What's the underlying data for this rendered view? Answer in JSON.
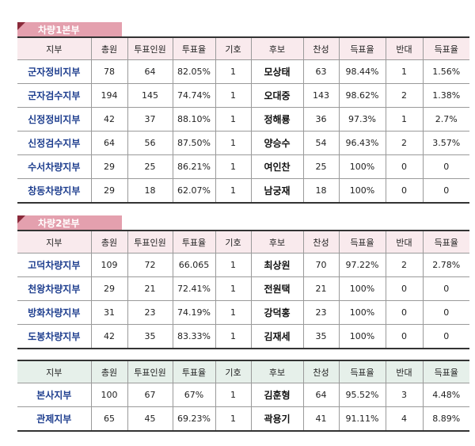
{
  "headers": [
    "지부",
    "총원",
    "투표인원",
    "투표율",
    "기호",
    "후보",
    "찬성",
    "득표율",
    "반대",
    "득표율"
  ],
  "sections": [
    {
      "title": "차량1본부",
      "rows": [
        [
          "군자정비지부",
          "78",
          "64",
          "82.05%",
          "1",
          "모상태",
          "63",
          "98.44%",
          "1",
          "1.56%"
        ],
        [
          "군자검수지부",
          "194",
          "145",
          "74.74%",
          "1",
          "오대중",
          "143",
          "98.62%",
          "2",
          "1.38%"
        ],
        [
          "신정정비지부",
          "42",
          "37",
          "88.10%",
          "1",
          "정해룡",
          "36",
          "97.3%",
          "1",
          "2.7%"
        ],
        [
          "신정검수지부",
          "64",
          "56",
          "87.50%",
          "1",
          "양승수",
          "54",
          "96.43%",
          "2",
          "3.57%"
        ],
        [
          "수서차량지부",
          "29",
          "25",
          "86.21%",
          "1",
          "여인찬",
          "25",
          "100%",
          "0",
          "0"
        ],
        [
          "창동차량지부",
          "29",
          "18",
          "62.07%",
          "1",
          "남궁재",
          "18",
          "100%",
          "0",
          "0"
        ]
      ]
    },
    {
      "title": "차량2본부",
      "rows": [
        [
          "고덕차량지부",
          "109",
          "72",
          "66.065",
          "1",
          "최상원",
          "70",
          "97.22%",
          "2",
          "2.78%"
        ],
        [
          "천왕차량지부",
          "29",
          "21",
          "72.41%",
          "1",
          "전원택",
          "21",
          "100%",
          "0",
          "0"
        ],
        [
          "방화차량지부",
          "31",
          "23",
          "74.19%",
          "1",
          "강덕홍",
          "23",
          "100%",
          "0",
          "0"
        ],
        [
          "도봉차량지부",
          "42",
          "35",
          "83.33%",
          "1",
          "김재세",
          "35",
          "100%",
          "0",
          "0"
        ]
      ]
    },
    {
      "title": "",
      "rows": [
        [
          "본사지부",
          "100",
          "67",
          "67%",
          "1",
          "김훈형",
          "64",
          "95.52%",
          "3",
          "4.48%"
        ],
        [
          "관제지부",
          "65",
          "45",
          "69.23%",
          "1",
          "곽용기",
          "41",
          "91.11%",
          "4",
          "8.89%"
        ]
      ]
    }
  ]
}
